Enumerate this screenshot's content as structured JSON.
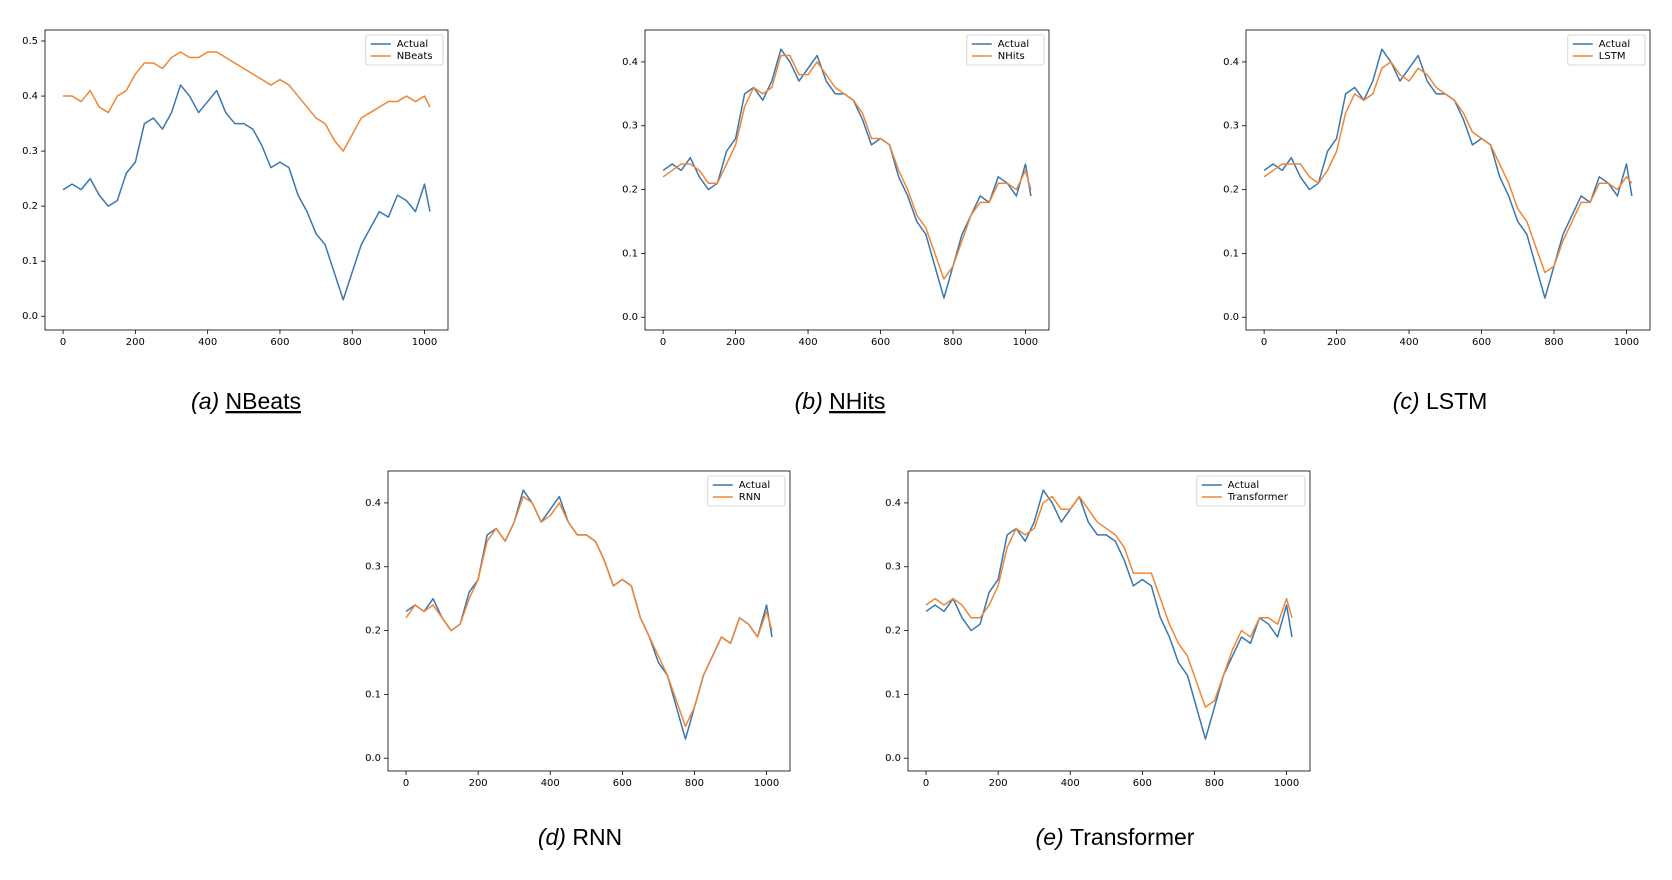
{
  "chart_data": [
    {
      "type": "line",
      "caption_label": "(a)",
      "caption": "NBeats",
      "legend": "upper right",
      "x": [
        0,
        25,
        50,
        75,
        100,
        125,
        150,
        175,
        200,
        225,
        250,
        275,
        300,
        325,
        350,
        375,
        400,
        425,
        450,
        475,
        500,
        525,
        550,
        575,
        600,
        625,
        650,
        675,
        700,
        725,
        750,
        775,
        800,
        825,
        850,
        875,
        900,
        925,
        950,
        975,
        1000,
        1015
      ],
      "xlim": [
        -50,
        1065
      ],
      "xticks": [
        0,
        200,
        400,
        600,
        800,
        1000
      ],
      "ylim": [
        -0.025,
        0.52
      ],
      "yticks": [
        {
          "value": 0,
          "label": "0.0"
        },
        0.1,
        0.2,
        0.3,
        0.4,
        0.5
      ],
      "series": [
        {
          "name": "Actual",
          "color": "#3a76af",
          "values": [
            0.23,
            0.24,
            0.23,
            0.25,
            0.22,
            0.2,
            0.21,
            0.26,
            0.28,
            0.35,
            0.36,
            0.34,
            0.37,
            0.42,
            0.4,
            0.37,
            0.39,
            0.41,
            0.37,
            0.35,
            0.35,
            0.34,
            0.31,
            0.27,
            0.28,
            0.27,
            0.22,
            0.19,
            0.15,
            0.13,
            0.08,
            0.03,
            0.08,
            0.13,
            0.16,
            0.19,
            0.18,
            0.22,
            0.21,
            0.19,
            0.24,
            0.19
          ]
        },
        {
          "name": "NBeats",
          "color": "#ef8636",
          "values": [
            0.4,
            0.4,
            0.39,
            0.41,
            0.38,
            0.37,
            0.4,
            0.41,
            0.44,
            0.46,
            0.46,
            0.45,
            0.47,
            0.48,
            0.47,
            0.47,
            0.48,
            0.48,
            0.47,
            0.46,
            0.45,
            0.44,
            0.43,
            0.42,
            0.43,
            0.42,
            0.4,
            0.38,
            0.36,
            0.35,
            0.32,
            0.3,
            0.33,
            0.36,
            0.37,
            0.38,
            0.39,
            0.39,
            0.4,
            0.39,
            0.4,
            0.38
          ]
        }
      ]
    },
    {
      "type": "line",
      "caption_label": "(b)",
      "caption": "NHits",
      "legend": "upper right",
      "x": [
        0,
        25,
        50,
        75,
        100,
        125,
        150,
        175,
        200,
        225,
        250,
        275,
        300,
        325,
        350,
        375,
        400,
        425,
        450,
        475,
        500,
        525,
        550,
        575,
        600,
        625,
        650,
        675,
        700,
        725,
        750,
        775,
        800,
        825,
        850,
        875,
        900,
        925,
        950,
        975,
        1000,
        1015
      ],
      "xlim": [
        -50,
        1065
      ],
      "xticks": [
        0,
        200,
        400,
        600,
        800,
        1000
      ],
      "ylim": [
        -0.02,
        0.45
      ],
      "yticks": [
        {
          "value": 0,
          "label": "0.0"
        },
        0.1,
        0.2,
        0.3,
        0.4
      ],
      "series": [
        {
          "name": "Actual",
          "color": "#3a76af",
          "values": [
            0.23,
            0.24,
            0.23,
            0.25,
            0.22,
            0.2,
            0.21,
            0.26,
            0.28,
            0.35,
            0.36,
            0.34,
            0.37,
            0.42,
            0.4,
            0.37,
            0.39,
            0.41,
            0.37,
            0.35,
            0.35,
            0.34,
            0.31,
            0.27,
            0.28,
            0.27,
            0.22,
            0.19,
            0.15,
            0.13,
            0.08,
            0.03,
            0.08,
            0.13,
            0.16,
            0.19,
            0.18,
            0.22,
            0.21,
            0.19,
            0.24,
            0.19
          ]
        },
        {
          "name": "NHits",
          "color": "#ef8636",
          "values": [
            0.22,
            0.23,
            0.24,
            0.24,
            0.23,
            0.21,
            0.21,
            0.24,
            0.27,
            0.33,
            0.36,
            0.35,
            0.36,
            0.41,
            0.41,
            0.38,
            0.38,
            0.4,
            0.38,
            0.36,
            0.35,
            0.34,
            0.32,
            0.28,
            0.28,
            0.27,
            0.23,
            0.2,
            0.16,
            0.14,
            0.1,
            0.06,
            0.08,
            0.12,
            0.16,
            0.18,
            0.18,
            0.21,
            0.21,
            0.2,
            0.23,
            0.2
          ]
        }
      ]
    },
    {
      "type": "line",
      "caption_label": "(c)",
      "caption": "LSTM",
      "legend": "upper right",
      "x": [
        0,
        25,
        50,
        75,
        100,
        125,
        150,
        175,
        200,
        225,
        250,
        275,
        300,
        325,
        350,
        375,
        400,
        425,
        450,
        475,
        500,
        525,
        550,
        575,
        600,
        625,
        650,
        675,
        700,
        725,
        750,
        775,
        800,
        825,
        850,
        875,
        900,
        925,
        950,
        975,
        1000,
        1015
      ],
      "xlim": [
        -50,
        1065
      ],
      "xticks": [
        0,
        200,
        400,
        600,
        800,
        1000
      ],
      "ylim": [
        -0.02,
        0.45
      ],
      "yticks": [
        {
          "value": 0,
          "label": "0.0"
        },
        0.1,
        0.2,
        0.3,
        0.4
      ],
      "series": [
        {
          "name": "Actual",
          "color": "#3a76af",
          "values": [
            0.23,
            0.24,
            0.23,
            0.25,
            0.22,
            0.2,
            0.21,
            0.26,
            0.28,
            0.35,
            0.36,
            0.34,
            0.37,
            0.42,
            0.4,
            0.37,
            0.39,
            0.41,
            0.37,
            0.35,
            0.35,
            0.34,
            0.31,
            0.27,
            0.28,
            0.27,
            0.22,
            0.19,
            0.15,
            0.13,
            0.08,
            0.03,
            0.08,
            0.13,
            0.16,
            0.19,
            0.18,
            0.22,
            0.21,
            0.19,
            0.24,
            0.19
          ]
        },
        {
          "name": "LSTM",
          "color": "#ef8636",
          "values": [
            0.22,
            0.23,
            0.24,
            0.24,
            0.24,
            0.22,
            0.21,
            0.23,
            0.26,
            0.32,
            0.35,
            0.34,
            0.35,
            0.39,
            0.4,
            0.38,
            0.37,
            0.39,
            0.38,
            0.36,
            0.35,
            0.34,
            0.32,
            0.29,
            0.28,
            0.27,
            0.24,
            0.21,
            0.17,
            0.15,
            0.11,
            0.07,
            0.08,
            0.12,
            0.15,
            0.18,
            0.18,
            0.21,
            0.21,
            0.2,
            0.22,
            0.21
          ]
        }
      ]
    },
    {
      "type": "line",
      "caption_label": "(d)",
      "caption": "RNN",
      "legend": "upper right",
      "x": [
        0,
        25,
        50,
        75,
        100,
        125,
        150,
        175,
        200,
        225,
        250,
        275,
        300,
        325,
        350,
        375,
        400,
        425,
        450,
        475,
        500,
        525,
        550,
        575,
        600,
        625,
        650,
        675,
        700,
        725,
        750,
        775,
        800,
        825,
        850,
        875,
        900,
        925,
        950,
        975,
        1000,
        1015
      ],
      "xlim": [
        -50,
        1065
      ],
      "xticks": [
        0,
        200,
        400,
        600,
        800,
        1000
      ],
      "ylim": [
        -0.02,
        0.45
      ],
      "yticks": [
        {
          "value": 0,
          "label": "0.0"
        },
        0.1,
        0.2,
        0.3,
        0.4
      ],
      "series": [
        {
          "name": "Actual",
          "color": "#3a76af",
          "values": [
            0.23,
            0.24,
            0.23,
            0.25,
            0.22,
            0.2,
            0.21,
            0.26,
            0.28,
            0.35,
            0.36,
            0.34,
            0.37,
            0.42,
            0.4,
            0.37,
            0.39,
            0.41,
            0.37,
            0.35,
            0.35,
            0.34,
            0.31,
            0.27,
            0.28,
            0.27,
            0.22,
            0.19,
            0.15,
            0.13,
            0.08,
            0.03,
            0.08,
            0.13,
            0.16,
            0.19,
            0.18,
            0.22,
            0.21,
            0.19,
            0.24,
            0.19
          ]
        },
        {
          "name": "RNN",
          "color": "#ef8636",
          "values": [
            0.22,
            0.24,
            0.23,
            0.24,
            0.22,
            0.2,
            0.21,
            0.25,
            0.28,
            0.34,
            0.36,
            0.34,
            0.37,
            0.41,
            0.4,
            0.37,
            0.38,
            0.4,
            0.37,
            0.35,
            0.35,
            0.34,
            0.31,
            0.27,
            0.28,
            0.27,
            0.22,
            0.19,
            0.16,
            0.13,
            0.09,
            0.05,
            0.08,
            0.13,
            0.16,
            0.19,
            0.18,
            0.22,
            0.21,
            0.19,
            0.23,
            0.2
          ]
        }
      ]
    },
    {
      "type": "line",
      "caption_label": "(e)",
      "caption": "Transformer",
      "legend": "upper right",
      "x": [
        0,
        25,
        50,
        75,
        100,
        125,
        150,
        175,
        200,
        225,
        250,
        275,
        300,
        325,
        350,
        375,
        400,
        425,
        450,
        475,
        500,
        525,
        550,
        575,
        600,
        625,
        650,
        675,
        700,
        725,
        750,
        775,
        800,
        825,
        850,
        875,
        900,
        925,
        950,
        975,
        1000,
        1015
      ],
      "xlim": [
        -50,
        1065
      ],
      "xticks": [
        0,
        200,
        400,
        600,
        800,
        1000
      ],
      "ylim": [
        -0.02,
        0.45
      ],
      "yticks": [
        {
          "value": 0,
          "label": "0.0"
        },
        0.1,
        0.2,
        0.3,
        0.4
      ],
      "series": [
        {
          "name": "Actual",
          "color": "#3a76af",
          "values": [
            0.23,
            0.24,
            0.23,
            0.25,
            0.22,
            0.2,
            0.21,
            0.26,
            0.28,
            0.35,
            0.36,
            0.34,
            0.37,
            0.42,
            0.4,
            0.37,
            0.39,
            0.41,
            0.37,
            0.35,
            0.35,
            0.34,
            0.31,
            0.27,
            0.28,
            0.27,
            0.22,
            0.19,
            0.15,
            0.13,
            0.08,
            0.03,
            0.08,
            0.13,
            0.16,
            0.19,
            0.18,
            0.22,
            0.21,
            0.19,
            0.24,
            0.19
          ]
        },
        {
          "name": "Transformer",
          "color": "#ef8636",
          "values": [
            0.24,
            0.25,
            0.24,
            0.25,
            0.24,
            0.22,
            0.22,
            0.24,
            0.27,
            0.33,
            0.36,
            0.35,
            0.36,
            0.4,
            0.41,
            0.39,
            0.39,
            0.41,
            0.39,
            0.37,
            0.36,
            0.35,
            0.33,
            0.29,
            0.29,
            0.29,
            0.25,
            0.21,
            0.18,
            0.16,
            0.12,
            0.08,
            0.09,
            0.13,
            0.17,
            0.2,
            0.19,
            0.22,
            0.22,
            0.21,
            0.25,
            0.22
          ]
        }
      ]
    }
  ]
}
